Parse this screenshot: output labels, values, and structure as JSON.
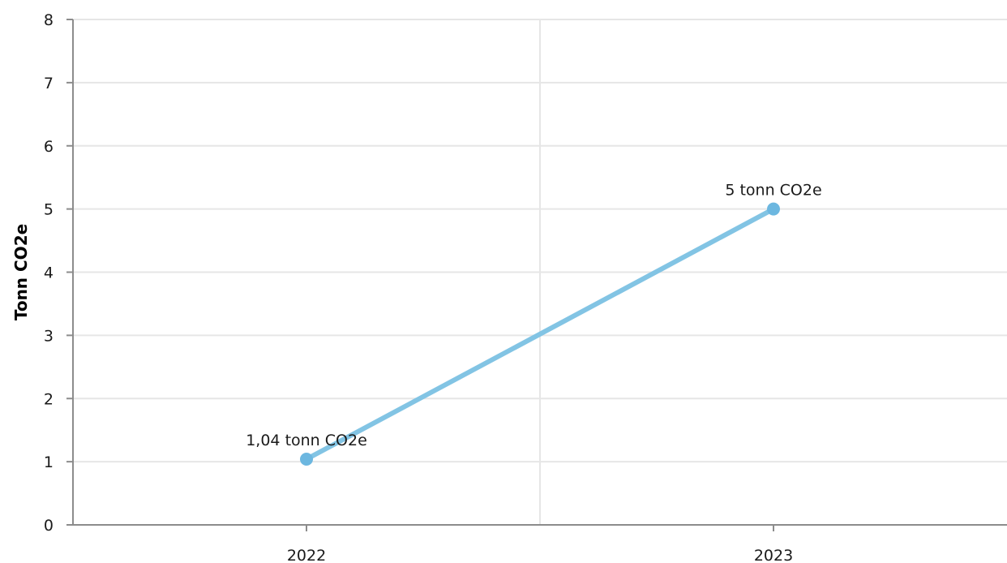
{
  "chart_data": {
    "type": "line",
    "title": "",
    "xlabel": "",
    "ylabel": "Tonn CO2e",
    "categories": [
      "2022",
      "2023"
    ],
    "series": [
      {
        "values": [
          1.04,
          5
        ],
        "data_labels": [
          "1,04 tonn CO2e",
          "5 tonn CO2e"
        ],
        "color": "#82c4e4",
        "marker_color": "#6cb7e0"
      }
    ],
    "ylim": [
      0,
      8
    ],
    "yticks": [
      "0",
      "1",
      "2",
      "3",
      "4",
      "5",
      "6",
      "7",
      "8"
    ],
    "grid": true,
    "legend": "none"
  }
}
